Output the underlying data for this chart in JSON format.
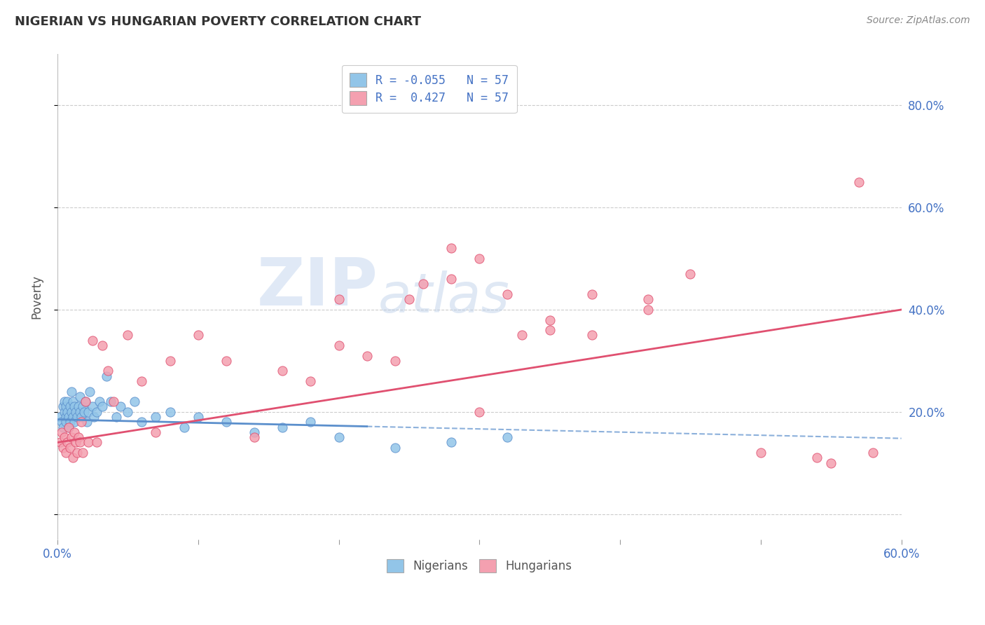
{
  "title": "NIGERIAN VS HUNGARIAN POVERTY CORRELATION CHART",
  "source": "Source: ZipAtlas.com",
  "ylabel": "Poverty",
  "xmin": 0.0,
  "xmax": 0.6,
  "ymin": -0.05,
  "ymax": 0.9,
  "yticks": [
    0.0,
    0.2,
    0.4,
    0.6,
    0.8
  ],
  "ytick_labels": [
    "",
    "20.0%",
    "40.0%",
    "60.0%",
    "80.0%"
  ],
  "nigerian_color": "#92C5E8",
  "hungarian_color": "#F4A0B0",
  "nigerian_line_color": "#5B8FCC",
  "hungarian_line_color": "#E05070",
  "background_color": "#FFFFFF",
  "grid_color": "#CCCCCC",
  "watermark_zip": "ZIP",
  "watermark_atlas": "atlas",
  "nig_r": -0.055,
  "nig_n": 57,
  "hung_r": 0.427,
  "hung_n": 57,
  "nig_trend_x0": 0.0,
  "nig_trend_x_solid_end": 0.22,
  "nig_trend_x1": 0.6,
  "nig_trend_y0": 0.185,
  "nig_trend_y1": 0.148,
  "hung_trend_x0": 0.0,
  "hung_trend_x1": 0.6,
  "hung_trend_y0": 0.14,
  "hung_trend_y1": 0.4,
  "nigerian_pts_x": [
    0.002,
    0.003,
    0.004,
    0.004,
    0.005,
    0.005,
    0.006,
    0.006,
    0.006,
    0.007,
    0.007,
    0.008,
    0.008,
    0.009,
    0.009,
    0.01,
    0.01,
    0.011,
    0.011,
    0.012,
    0.012,
    0.013,
    0.014,
    0.015,
    0.016,
    0.016,
    0.017,
    0.018,
    0.019,
    0.02,
    0.021,
    0.022,
    0.023,
    0.025,
    0.026,
    0.028,
    0.03,
    0.032,
    0.035,
    0.038,
    0.042,
    0.045,
    0.05,
    0.055,
    0.06,
    0.07,
    0.08,
    0.09,
    0.1,
    0.12,
    0.14,
    0.16,
    0.18,
    0.2,
    0.24,
    0.28,
    0.32
  ],
  "nigerian_pts_y": [
    0.19,
    0.18,
    0.21,
    0.17,
    0.2,
    0.22,
    0.19,
    0.21,
    0.18,
    0.22,
    0.2,
    0.17,
    0.19,
    0.21,
    0.18,
    0.2,
    0.24,
    0.19,
    0.22,
    0.21,
    0.18,
    0.2,
    0.19,
    0.21,
    0.2,
    0.23,
    0.19,
    0.21,
    0.2,
    0.22,
    0.18,
    0.2,
    0.24,
    0.21,
    0.19,
    0.2,
    0.22,
    0.21,
    0.27,
    0.22,
    0.19,
    0.21,
    0.2,
    0.22,
    0.18,
    0.19,
    0.2,
    0.17,
    0.19,
    0.18,
    0.16,
    0.17,
    0.18,
    0.15,
    0.13,
    0.14,
    0.15
  ],
  "hungarian_pts_x": [
    0.002,
    0.003,
    0.004,
    0.005,
    0.006,
    0.007,
    0.008,
    0.009,
    0.01,
    0.011,
    0.012,
    0.013,
    0.014,
    0.015,
    0.016,
    0.017,
    0.018,
    0.02,
    0.022,
    0.025,
    0.028,
    0.032,
    0.036,
    0.04,
    0.05,
    0.06,
    0.07,
    0.08,
    0.1,
    0.12,
    0.14,
    0.16,
    0.18,
    0.2,
    0.22,
    0.24,
    0.26,
    0.28,
    0.3,
    0.32,
    0.35,
    0.38,
    0.42,
    0.45,
    0.5,
    0.54,
    0.57,
    0.58,
    0.35,
    0.42,
    0.55,
    0.2,
    0.25,
    0.3,
    0.28,
    0.33,
    0.38
  ],
  "hungarian_pts_y": [
    0.14,
    0.16,
    0.13,
    0.15,
    0.12,
    0.14,
    0.17,
    0.13,
    0.15,
    0.11,
    0.16,
    0.14,
    0.12,
    0.15,
    0.14,
    0.18,
    0.12,
    0.22,
    0.14,
    0.34,
    0.14,
    0.33,
    0.28,
    0.22,
    0.35,
    0.26,
    0.16,
    0.3,
    0.35,
    0.3,
    0.15,
    0.28,
    0.26,
    0.33,
    0.31,
    0.3,
    0.45,
    0.46,
    0.5,
    0.43,
    0.38,
    0.43,
    0.4,
    0.47,
    0.12,
    0.11,
    0.65,
    0.12,
    0.36,
    0.42,
    0.1,
    0.42,
    0.42,
    0.2,
    0.52,
    0.35,
    0.35
  ]
}
